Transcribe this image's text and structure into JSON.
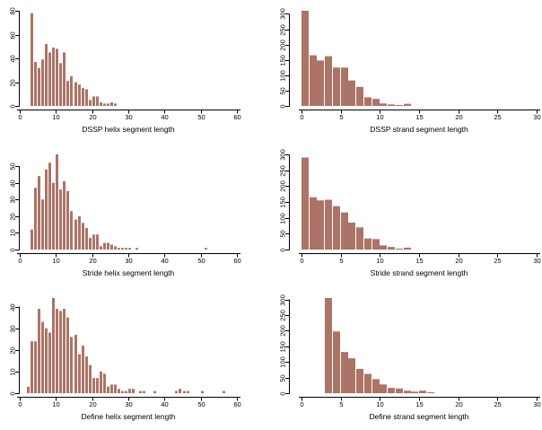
{
  "figure": {
    "background": "#ffffff",
    "bar_color": "#ac7466",
    "axis_color": "#000000",
    "grid": "off",
    "legend": "none"
  },
  "chart_data": [
    {
      "type": "bar",
      "kind": "histogram",
      "xlabel": "DSSP helix segment length",
      "ylabel": "",
      "xlim": [
        0,
        60
      ],
      "xticks": [
        0,
        10,
        20,
        30,
        40,
        50,
        60
      ],
      "yticks": [
        0,
        20,
        40,
        60,
        80
      ],
      "ylim": [
        0,
        80
      ],
      "x_start": 3,
      "bin_width": 1,
      "values": [
        78,
        37,
        32,
        39,
        52,
        45,
        49,
        48,
        36,
        45,
        21,
        25,
        20,
        18,
        15,
        14,
        5,
        8,
        8,
        3,
        2,
        2,
        3,
        2
      ]
    },
    {
      "type": "bar",
      "kind": "histogram",
      "xlabel": "DSSP strand segment length",
      "ylabel": "",
      "xlim": [
        0,
        30
      ],
      "xticks": [
        0,
        5,
        10,
        15,
        20,
        25,
        30
      ],
      "yticks": [
        0,
        50,
        100,
        150,
        200,
        250,
        300
      ],
      "ylim": [
        0,
        310
      ],
      "x_start": 0,
      "bin_width": 1,
      "values": [
        310,
        165,
        148,
        162,
        125,
        125,
        83,
        62,
        28,
        23,
        8,
        5,
        3,
        7
      ]
    },
    {
      "type": "bar",
      "kind": "histogram",
      "xlabel": "Stride helix segment length",
      "ylabel": "",
      "xlim": [
        0,
        60
      ],
      "xticks": [
        0,
        10,
        20,
        30,
        40,
        50,
        60
      ],
      "yticks": [
        0,
        10,
        20,
        30,
        40,
        50
      ],
      "ylim": [
        0,
        57
      ],
      "x_start": 3,
      "bin_width": 1,
      "values": [
        12,
        37,
        44,
        30,
        48,
        52,
        40,
        57,
        36,
        41,
        35,
        23,
        18,
        20,
        16,
        13,
        7,
        9,
        9,
        2,
        4,
        4,
        3,
        2,
        1,
        1,
        1,
        1,
        0,
        1,
        0,
        0,
        0,
        0,
        0,
        0,
        0,
        0,
        0,
        0,
        0,
        0,
        0,
        0,
        0,
        0,
        0,
        0,
        1
      ]
    },
    {
      "type": "bar",
      "kind": "histogram",
      "xlabel": "Stride strand segment length",
      "ylabel": "",
      "xlim": [
        0,
        30
      ],
      "xticks": [
        0,
        5,
        10,
        15,
        20,
        25,
        30
      ],
      "yticks": [
        0,
        50,
        100,
        150,
        200,
        250,
        300
      ],
      "ylim": [
        0,
        300
      ],
      "x_start": 0,
      "bin_width": 1,
      "values": [
        290,
        165,
        155,
        157,
        137,
        117,
        85,
        70,
        35,
        33,
        13,
        8,
        3,
        6
      ]
    },
    {
      "type": "bar",
      "kind": "histogram",
      "xlabel": "Define helix segment length",
      "ylabel": "",
      "xlim": [
        0,
        60
      ],
      "xticks": [
        0,
        10,
        20,
        30,
        40,
        50,
        60
      ],
      "yticks": [
        0,
        10,
        20,
        30,
        40
      ],
      "ylim": [
        0,
        44
      ],
      "x_start": 2,
      "bin_width": 1,
      "values": [
        3,
        24,
        24,
        39,
        33,
        30,
        28,
        44,
        39,
        38,
        39,
        35,
        26,
        27,
        18,
        22,
        17,
        13,
        7,
        7,
        10,
        9,
        3,
        4,
        4,
        2,
        1,
        1,
        2,
        2,
        0,
        1,
        1,
        0,
        0,
        1,
        0,
        0,
        0,
        0,
        0,
        1,
        2,
        1,
        1,
        0,
        0,
        0,
        1,
        0,
        0,
        0,
        0,
        0,
        1
      ]
    },
    {
      "type": "bar",
      "kind": "histogram",
      "xlabel": "Define strand segment length",
      "ylabel": "",
      "xlim": [
        0,
        30
      ],
      "xticks": [
        0,
        5,
        10,
        15,
        20,
        25,
        30
      ],
      "yticks": [
        0,
        50,
        100,
        150,
        200,
        250,
        300
      ],
      "ylim": [
        0,
        305
      ],
      "x_start": 3,
      "bin_width": 1,
      "values": [
        305,
        198,
        132,
        112,
        78,
        62,
        45,
        28,
        17,
        15,
        8,
        5,
        8,
        3
      ]
    }
  ]
}
